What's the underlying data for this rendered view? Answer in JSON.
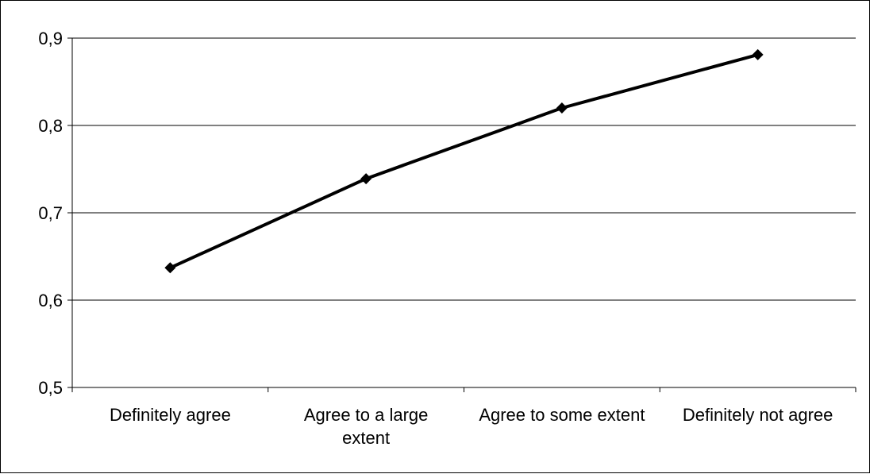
{
  "chart_data": {
    "type": "line",
    "title": "",
    "xlabel": "",
    "ylabel": "",
    "categories": [
      [
        "Definitely agree"
      ],
      [
        "Agree to a large",
        "extent"
      ],
      [
        "Agree to some extent"
      ],
      [
        "Definitely not agree"
      ]
    ],
    "series": [
      {
        "values": [
          0.637,
          0.739,
          0.82,
          0.881
        ]
      }
    ],
    "ylim": [
      0.5,
      0.9
    ],
    "yticks": [
      0.5,
      0.6,
      0.7,
      0.8,
      0.9
    ],
    "ytick_labels": [
      "0,5",
      "0,6",
      "0,7",
      "0,8",
      "0,9"
    ],
    "grid": "horizontal",
    "legend": "none",
    "marker": "diamond",
    "colors": {
      "line": "#000000",
      "grid": "#000000",
      "axis": "#000000"
    }
  }
}
